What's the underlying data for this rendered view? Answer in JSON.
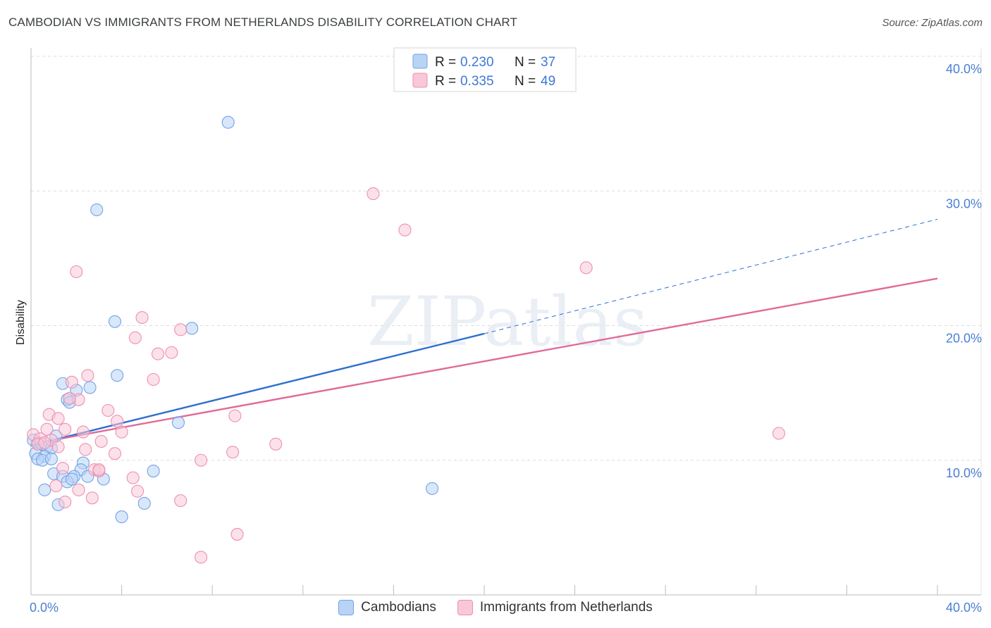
{
  "title": "CAMBODIAN VS IMMIGRANTS FROM NETHERLANDS DISABILITY CORRELATION CHART",
  "source": "Source: ZipAtlas.com",
  "watermark": "ZIPatlas",
  "chart_data": {
    "type": "scatter",
    "title": "CAMBODIAN VS IMMIGRANTS FROM NETHERLANDS DISABILITY CORRELATION CHART",
    "xlabel": "",
    "ylabel": "Disability",
    "xlim": [
      0,
      40
    ],
    "ylim": [
      0,
      40
    ],
    "x_tick_labels": [
      "0.0%",
      "40.0%"
    ],
    "y_ticks": [
      10,
      20,
      30,
      40
    ],
    "y_tick_labels": [
      "10.0%",
      "20.0%",
      "30.0%",
      "40.0%"
    ],
    "legend_stats": [
      {
        "r_label": "R = ",
        "r": "0.230",
        "n_label": "N = ",
        "n": "37"
      },
      {
        "r_label": "R = ",
        "r": "0.335",
        "n_label": "N = ",
        "n": "49"
      }
    ],
    "series": [
      {
        "name": "Cambodians",
        "color": "#6fa4e8",
        "fill": "#b9d3f5",
        "line_color": "#2d6fd0",
        "trend": {
          "x0": 0,
          "y0": 11.1,
          "x1": 20,
          "y1": 19.4,
          "dashed_to_x": 40,
          "dashed_to_y": 27.9
        },
        "points": [
          [
            8.7,
            35.1
          ],
          [
            2.9,
            28.6
          ],
          [
            3.7,
            20.3
          ],
          [
            7.1,
            19.8
          ],
          [
            3.8,
            16.3
          ],
          [
            1.4,
            15.7
          ],
          [
            2.6,
            15.4
          ],
          [
            2.0,
            15.2
          ],
          [
            1.6,
            14.5
          ],
          [
            1.7,
            14.3
          ],
          [
            6.5,
            12.8
          ],
          [
            1.1,
            11.8
          ],
          [
            0.3,
            11.3
          ],
          [
            0.5,
            11.2
          ],
          [
            0.7,
            11.0
          ],
          [
            0.9,
            10.9
          ],
          [
            0.2,
            10.5
          ],
          [
            0.6,
            10.3
          ],
          [
            0.3,
            10.1
          ],
          [
            0.5,
            10.0
          ],
          [
            0.9,
            10.1
          ],
          [
            2.3,
            9.8
          ],
          [
            2.2,
            9.3
          ],
          [
            5.4,
            9.2
          ],
          [
            1.0,
            9.0
          ],
          [
            1.4,
            8.8
          ],
          [
            1.9,
            8.8
          ],
          [
            2.5,
            8.8
          ],
          [
            3.2,
            8.6
          ],
          [
            1.6,
            8.4
          ],
          [
            0.6,
            7.8
          ],
          [
            17.7,
            7.9
          ],
          [
            1.2,
            6.7
          ],
          [
            5.0,
            6.8
          ],
          [
            4.0,
            5.8
          ],
          [
            0.1,
            11.5
          ],
          [
            1.8,
            8.6
          ]
        ]
      },
      {
        "name": "Immigrants from Netherlands",
        "color": "#ef8fb0",
        "fill": "#f8c8d8",
        "line_color": "#e06b98",
        "trend": {
          "x0": 0,
          "y0": 11.2,
          "x1": 40,
          "y1": 23.5
        },
        "points": [
          [
            15.1,
            29.8
          ],
          [
            16.5,
            27.1
          ],
          [
            24.5,
            24.3
          ],
          [
            2.0,
            24.0
          ],
          [
            4.9,
            20.6
          ],
          [
            6.6,
            19.7
          ],
          [
            4.6,
            19.1
          ],
          [
            6.2,
            18.0
          ],
          [
            5.6,
            17.9
          ],
          [
            2.5,
            16.3
          ],
          [
            1.8,
            15.8
          ],
          [
            5.4,
            16.0
          ],
          [
            2.1,
            14.5
          ],
          [
            1.7,
            14.6
          ],
          [
            3.4,
            13.7
          ],
          [
            0.8,
            13.4
          ],
          [
            9.0,
            13.3
          ],
          [
            1.2,
            13.1
          ],
          [
            3.8,
            12.9
          ],
          [
            0.7,
            12.3
          ],
          [
            1.5,
            12.3
          ],
          [
            2.3,
            12.1
          ],
          [
            4.0,
            12.1
          ],
          [
            0.1,
            11.9
          ],
          [
            33.0,
            12.0
          ],
          [
            0.4,
            11.6
          ],
          [
            0.9,
            11.5
          ],
          [
            3.1,
            11.4
          ],
          [
            10.8,
            11.2
          ],
          [
            0.3,
            11.2
          ],
          [
            1.2,
            11.0
          ],
          [
            2.4,
            10.8
          ],
          [
            8.9,
            10.6
          ],
          [
            3.7,
            10.5
          ],
          [
            7.5,
            10.0
          ],
          [
            1.4,
            9.4
          ],
          [
            2.8,
            9.3
          ],
          [
            3.0,
            9.2
          ],
          [
            4.5,
            8.7
          ],
          [
            1.1,
            8.1
          ],
          [
            2.1,
            7.8
          ],
          [
            4.7,
            7.7
          ],
          [
            1.5,
            6.9
          ],
          [
            2.7,
            7.2
          ],
          [
            6.6,
            7.0
          ],
          [
            9.1,
            4.5
          ],
          [
            7.5,
            2.8
          ],
          [
            3.0,
            9.3
          ],
          [
            0.6,
            11.3
          ]
        ]
      }
    ]
  }
}
